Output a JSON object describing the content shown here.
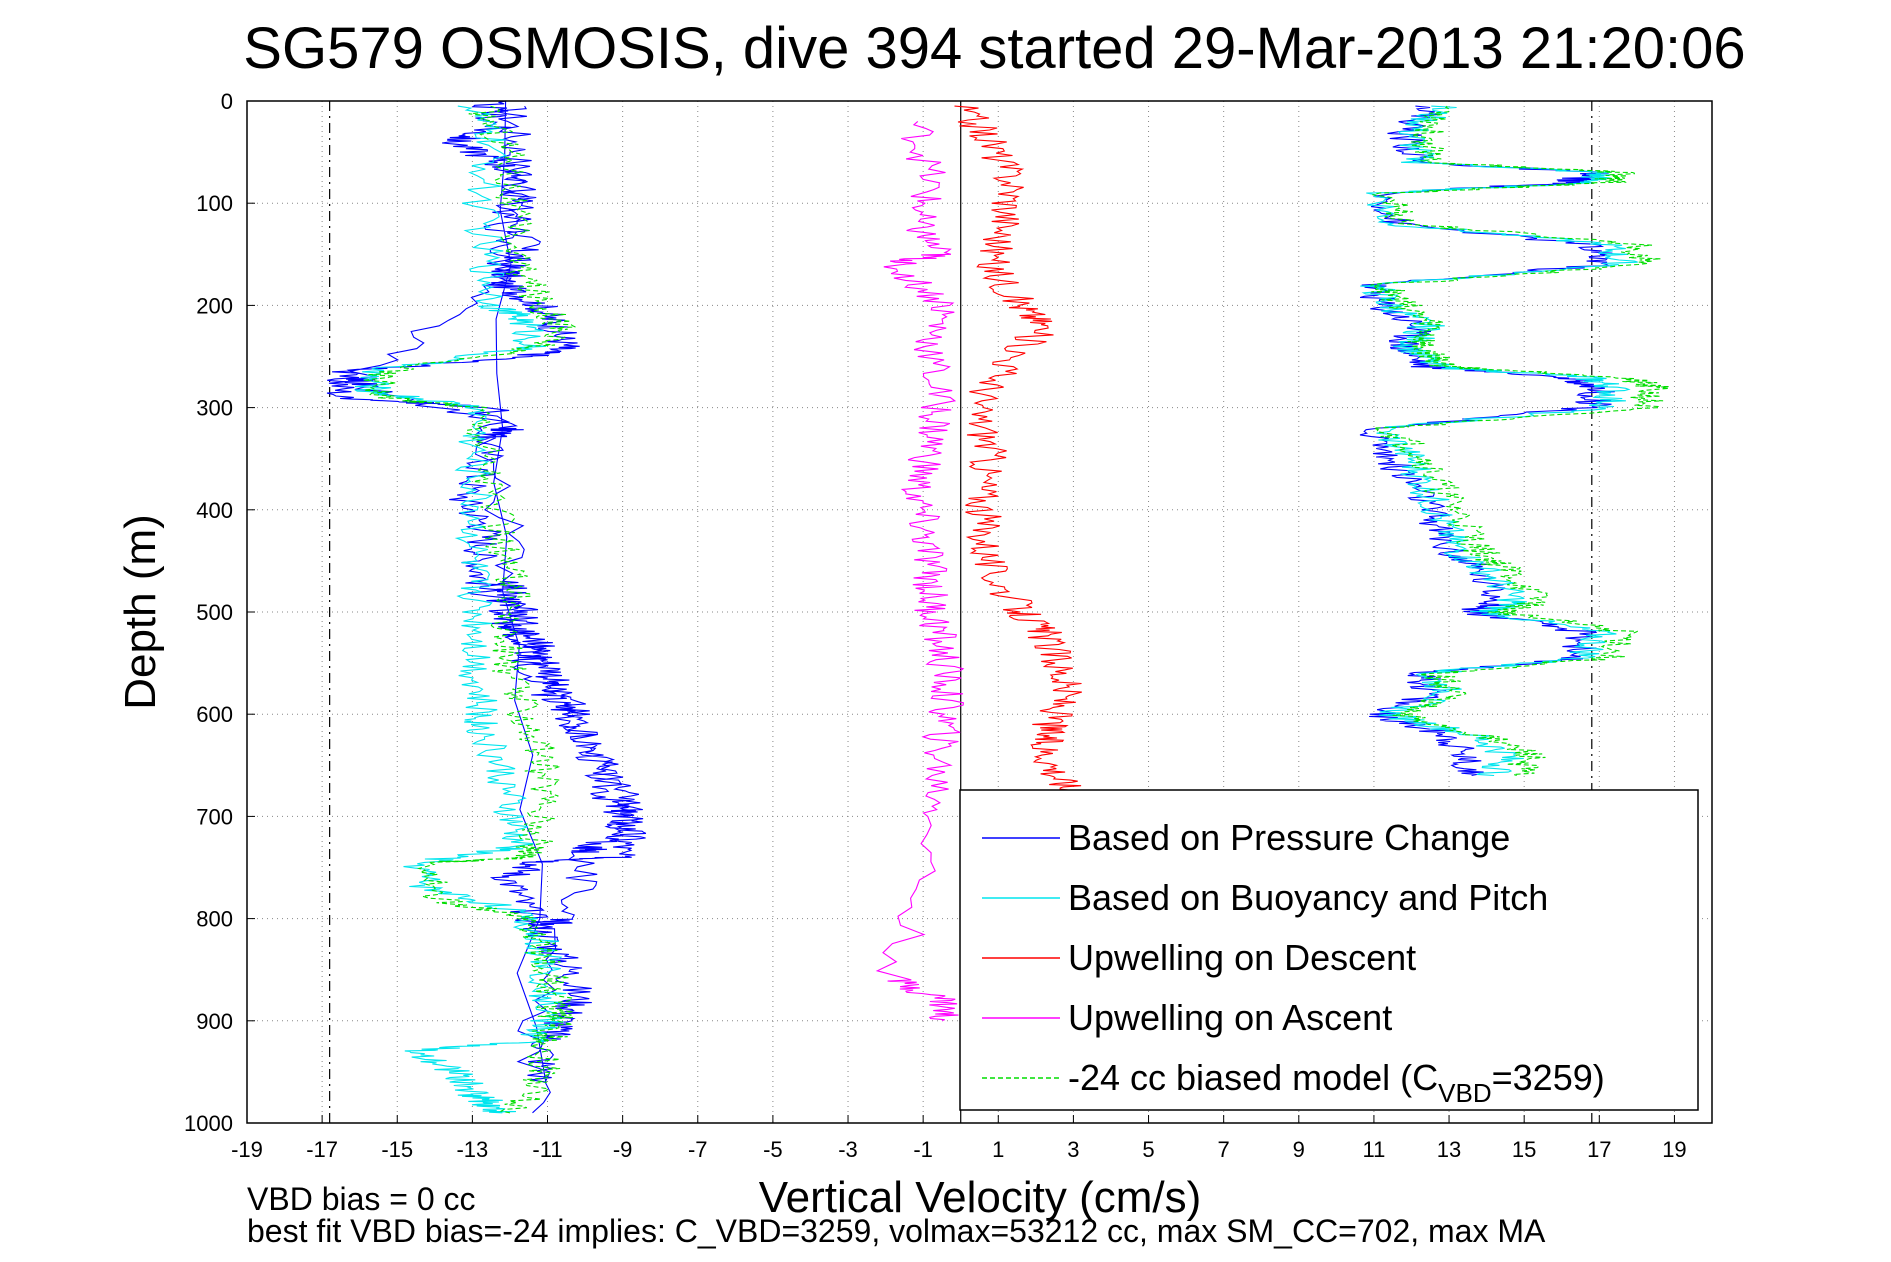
{
  "chart_data": {
    "type": "line",
    "title": "SG579 OSMOSIS, dive 394 started 29-Mar-2013 21:20:06",
    "xlabel": "Vertical Velocity (cm/s)",
    "ylabel": "Depth (m)",
    "xlim": [
      -19,
      20
    ],
    "ylim": [
      1000,
      0
    ],
    "y_reversed": true,
    "grid": true,
    "x_ticks": [
      -19,
      -17,
      -15,
      -13,
      -11,
      -9,
      -7,
      -5,
      -3,
      -1,
      1,
      3,
      5,
      7,
      9,
      11,
      13,
      15,
      17,
      19
    ],
    "y_ticks": [
      0,
      100,
      200,
      300,
      400,
      500,
      600,
      700,
      800,
      900,
      1000
    ],
    "reference_lines": [
      {
        "style": "dash-dot",
        "x": -16.8
      },
      {
        "style": "dash-dot",
        "x": 16.8
      },
      {
        "style": "solid",
        "x": 0
      }
    ],
    "series": [
      {
        "name": "Based on Pressure Change",
        "color": "#0000ff",
        "style": "solid",
        "x": [
          -12,
          -11.8,
          -11.8,
          -11.6,
          -12,
          -12.2,
          -11.2,
          -10.8,
          -10.5,
          -11.5,
          -16.5,
          -16.5,
          -12.5,
          -12.6,
          -13.2,
          -12.6,
          -12.8,
          -12.7,
          -11.6,
          -11.8,
          -11.2,
          -10.8,
          -11,
          -10.4,
          -9.8,
          -9.4,
          -9,
          -8.8,
          -9.2,
          -11.2,
          -12,
          -11.6,
          -11,
          -10.4,
          -10.2,
          -10.6,
          -11,
          -11.2,
          -12.6,
          -12.4,
          -13.5,
          -12.3,
          -11.6,
          -12.2,
          -12.2,
          -16,
          -16,
          -12,
          -12.6,
          -11.8,
          -12.2,
          -12.1,
          -11.2,
          -11.6,
          -10.4,
          -10,
          -9.4,
          -8.8,
          -9,
          -9.8,
          -10,
          -10.4,
          -11.2,
          -11.4
        ],
        "y": [
          5,
          50,
          100,
          140,
          160,
          180,
          200,
          220,
          240,
          250,
          265,
          290,
          300,
          350,
          390,
          420,
          450,
          480,
          500,
          520,
          540,
          560,
          580,
          600,
          640,
          680,
          700,
          720,
          740,
          745,
          760,
          790,
          820,
          850,
          880,
          900,
          920,
          960,
          0,
          25,
          40,
          60,
          80,
          120,
          170,
          270,
          280,
          320,
          330,
          470,
          490,
          510,
          530,
          550,
          590,
          620,
          660,
          690,
          710,
          730,
          735,
          800,
          810,
          990
        ]
      },
      {
        "name": "Based on Buoyancy and Pitch",
        "color": "#00e5ee",
        "style": "solid",
        "x": [
          -13,
          -12.5,
          -12.8,
          -12.6,
          -12.4,
          -11.6,
          -11.4,
          -15.8,
          -15.6,
          -12.8,
          -13,
          -12.9,
          -13,
          -12.9,
          -12.8,
          -12.9,
          -12.8,
          -12.7,
          -12.2,
          -12,
          -11.8,
          -14.4,
          -14.2,
          -12,
          -11.2,
          -11,
          -11,
          -11.4,
          -14.8,
          -13.4,
          -13,
          -12.6,
          -12.2
        ],
        "y": [
          5,
          40,
          100,
          160,
          200,
          215,
          240,
          265,
          285,
          300,
          350,
          400,
          450,
          480,
          520,
          560,
          600,
          620,
          660,
          700,
          730,
          745,
          770,
          790,
          820,
          860,
          900,
          920,
          930,
          950,
          970,
          980,
          990
        ]
      },
      {
        "name": "Upwelling on Descent",
        "color": "#ff0000",
        "style": "solid",
        "x": [
          0,
          0.8,
          1.4,
          1.2,
          0.8,
          1.6,
          2.2,
          1.2,
          0.4,
          0.8,
          0.6,
          0.6,
          0.8,
          1.6,
          2.2,
          2.6,
          2.8,
          2.4,
          2.2,
          2.6,
          3
        ],
        "y": [
          5,
          40,
          80,
          120,
          160,
          200,
          220,
          260,
          300,
          340,
          380,
          420,
          460,
          500,
          520,
          550,
          580,
          610,
          630,
          660,
          680
        ]
      },
      {
        "name": "Upwelling on Ascent",
        "color": "#ff00ff",
        "style": "solid",
        "x": [
          -1.2,
          -0.8,
          -1.2,
          -0.6,
          -1.8,
          -0.4,
          -0.8,
          -0.6,
          -0.8,
          -1.2,
          -1,
          -0.8,
          -0.8,
          -0.6,
          -0.4,
          -0.4,
          -0.6,
          -0.6,
          -1.8,
          -0.4,
          -0.5
        ],
        "y": [
          20,
          80,
          120,
          150,
          160,
          200,
          240,
          300,
          340,
          380,
          420,
          460,
          490,
          520,
          560,
          600,
          640,
          700,
          860,
          880,
          900
        ]
      },
      {
        "name": "-24 cc biased model (C_VBD=3259)",
        "color": "#00dd00",
        "style": "dashed",
        "x": [
          -12.8,
          -12,
          -12,
          -11.8,
          -11.2,
          -10.6,
          -11.2,
          -15.4,
          -15.4,
          -12.8,
          -12.6,
          -12.4,
          -12.2,
          -11.8,
          -12.2,
          -12,
          -11.6,
          -11.2,
          -11,
          -11.4,
          -11.4,
          -14,
          -14,
          -11.6,
          -11,
          -10.8,
          -10.8,
          -11,
          -11.2,
          -12
        ],
        "y": [
          5,
          50,
          100,
          160,
          200,
          220,
          240,
          265,
          290,
          300,
          350,
          400,
          450,
          480,
          520,
          560,
          600,
          640,
          680,
          730,
          740,
          745,
          780,
          800,
          840,
          880,
          900,
          920,
          960,
          990
        ]
      },
      {
        "name": "Right panel — Based on Pressure Change",
        "color": "#0000ff",
        "style": "solid",
        "x": [
          12.6,
          11.8,
          12.2,
          16.8,
          16.2,
          11.2,
          11.6,
          16.6,
          17.2,
          11,
          11.2,
          12.2,
          11.8,
          12.4,
          16,
          17,
          16.8,
          11,
          11.4,
          12.2,
          12.6,
          13,
          13.8,
          14.4,
          13.6,
          16.6,
          16.4,
          12.2,
          12.6,
          11,
          13,
          13.4,
          13.6
        ],
        "y": [
          5,
          30,
          60,
          70,
          80,
          90,
          120,
          140,
          160,
          180,
          200,
          220,
          240,
          260,
          270,
          280,
          300,
          320,
          350,
          380,
          410,
          440,
          460,
          490,
          500,
          520,
          545,
          560,
          580,
          600,
          620,
          640,
          660
        ]
      },
      {
        "name": "Right panel — Based on Buoyancy and Pitch",
        "color": "#00e5ee",
        "style": "solid",
        "x": [
          12.8,
          12,
          12.2,
          17,
          16.8,
          11.2,
          11.4,
          17.2,
          17.6,
          11,
          11.4,
          12.4,
          12,
          12.6,
          16.6,
          17.4,
          17.2,
          11.2,
          12,
          12.4,
          12.8,
          13.2,
          14,
          14.8,
          14,
          17,
          16.6,
          12.4,
          13,
          11.4,
          13.6,
          14.6,
          14.2
        ],
        "y": [
          5,
          30,
          60,
          70,
          80,
          90,
          120,
          140,
          160,
          180,
          200,
          220,
          240,
          260,
          270,
          280,
          300,
          320,
          350,
          380,
          410,
          440,
          460,
          490,
          500,
          520,
          545,
          560,
          580,
          600,
          620,
          640,
          660
        ]
      },
      {
        "name": "Right panel — -24 cc biased model",
        "color": "#00dd00",
        "style": "dashed",
        "x": [
          13,
          12.4,
          12.6,
          17.6,
          17.2,
          11.4,
          11.8,
          18,
          18.2,
          11.2,
          11.8,
          12.6,
          12.2,
          13,
          17.6,
          18.4,
          18.2,
          11.4,
          12.4,
          12.8,
          13.4,
          13.8,
          14.6,
          15.4,
          14.4,
          17.8,
          17.2,
          12.6,
          13.2,
          11.6,
          13.8,
          15.2,
          14.8
        ],
        "y": [
          5,
          30,
          60,
          70,
          80,
          90,
          120,
          140,
          160,
          180,
          200,
          220,
          240,
          260,
          270,
          280,
          300,
          320,
          350,
          380,
          410,
          440,
          460,
          490,
          500,
          520,
          545,
          560,
          580,
          600,
          620,
          640,
          660
        ]
      }
    ],
    "legend": {
      "placement": "bottom-right",
      "entries": [
        {
          "label": "Based on Pressure Change",
          "color": "#0000ff",
          "style": "solid"
        },
        {
          "label": "Based on Buoyancy and Pitch",
          "color": "#00e5ee",
          "style": "solid"
        },
        {
          "label": "Upwelling on Descent",
          "color": "#ff0000",
          "style": "solid"
        },
        {
          "label": "Upwelling on Ascent",
          "color": "#ff00ff",
          "style": "solid"
        },
        {
          "label_main": "-24 cc biased model (C",
          "label_sub": "VBD",
          "label_tail": "=3259)",
          "color": "#00dd00",
          "style": "dashed"
        }
      ]
    }
  },
  "footer": {
    "line1": "VBD bias = 0 cc",
    "line2": "best fit VBD bias=-24 implies: C_VBD=3259, volmax=53212 cc, max SM_CC=702, max MA"
  }
}
